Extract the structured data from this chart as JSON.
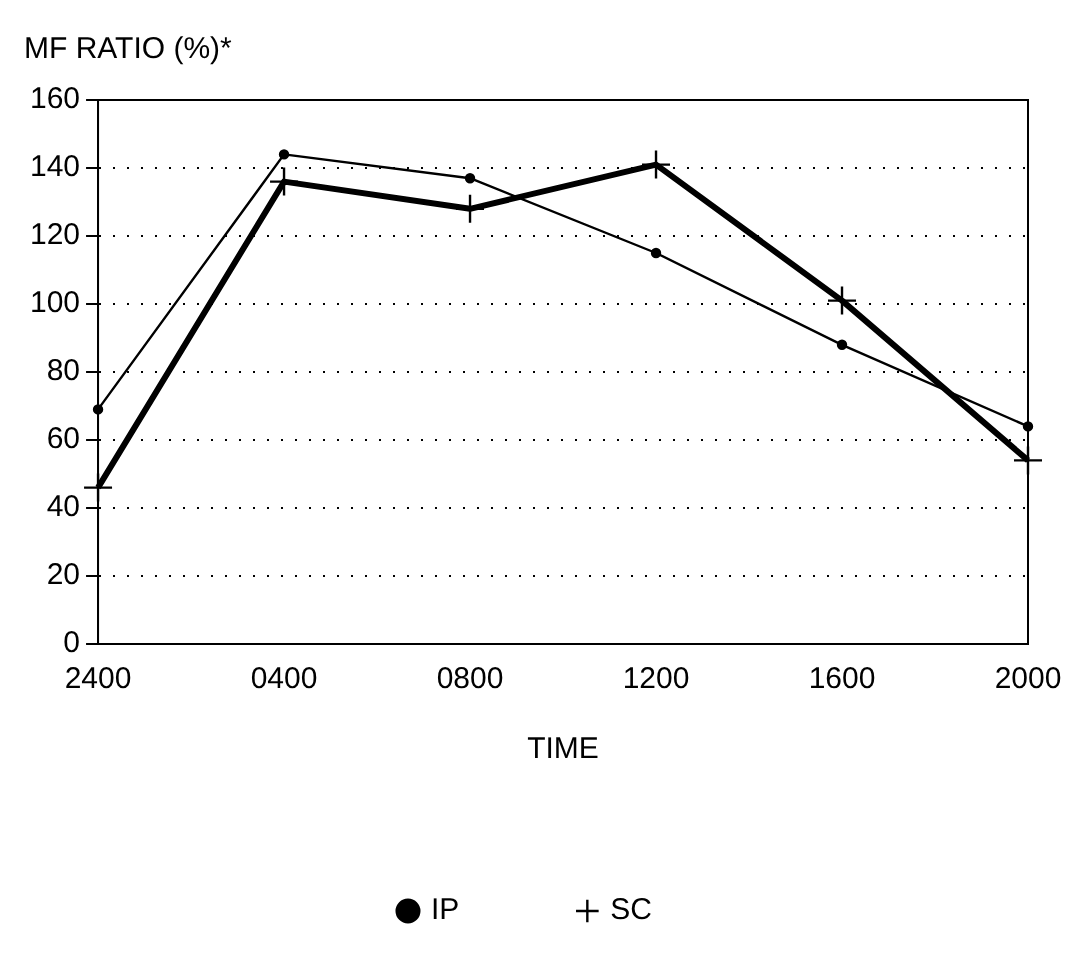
{
  "chart_data": {
    "type": "line",
    "ylabel": "MF RATIO (%)*",
    "xlabel": "TIME",
    "categories": [
      "2400",
      "0400",
      "0800",
      "1200",
      "1600",
      "2000"
    ],
    "series": [
      {
        "name": "IP",
        "color": "#000000",
        "marker": "circle",
        "values": [
          69,
          144,
          137,
          115,
          88,
          64
        ]
      },
      {
        "name": "SC",
        "color": "#000000",
        "marker": "cross",
        "values": [
          46,
          136,
          128,
          141,
          101,
          54
        ]
      }
    ],
    "ylim": [
      0,
      160
    ],
    "yticks": [
      0,
      20,
      40,
      60,
      80,
      100,
      120,
      140,
      160
    ],
    "grid": "y",
    "legend": "bottom",
    "line_style": "solid"
  }
}
